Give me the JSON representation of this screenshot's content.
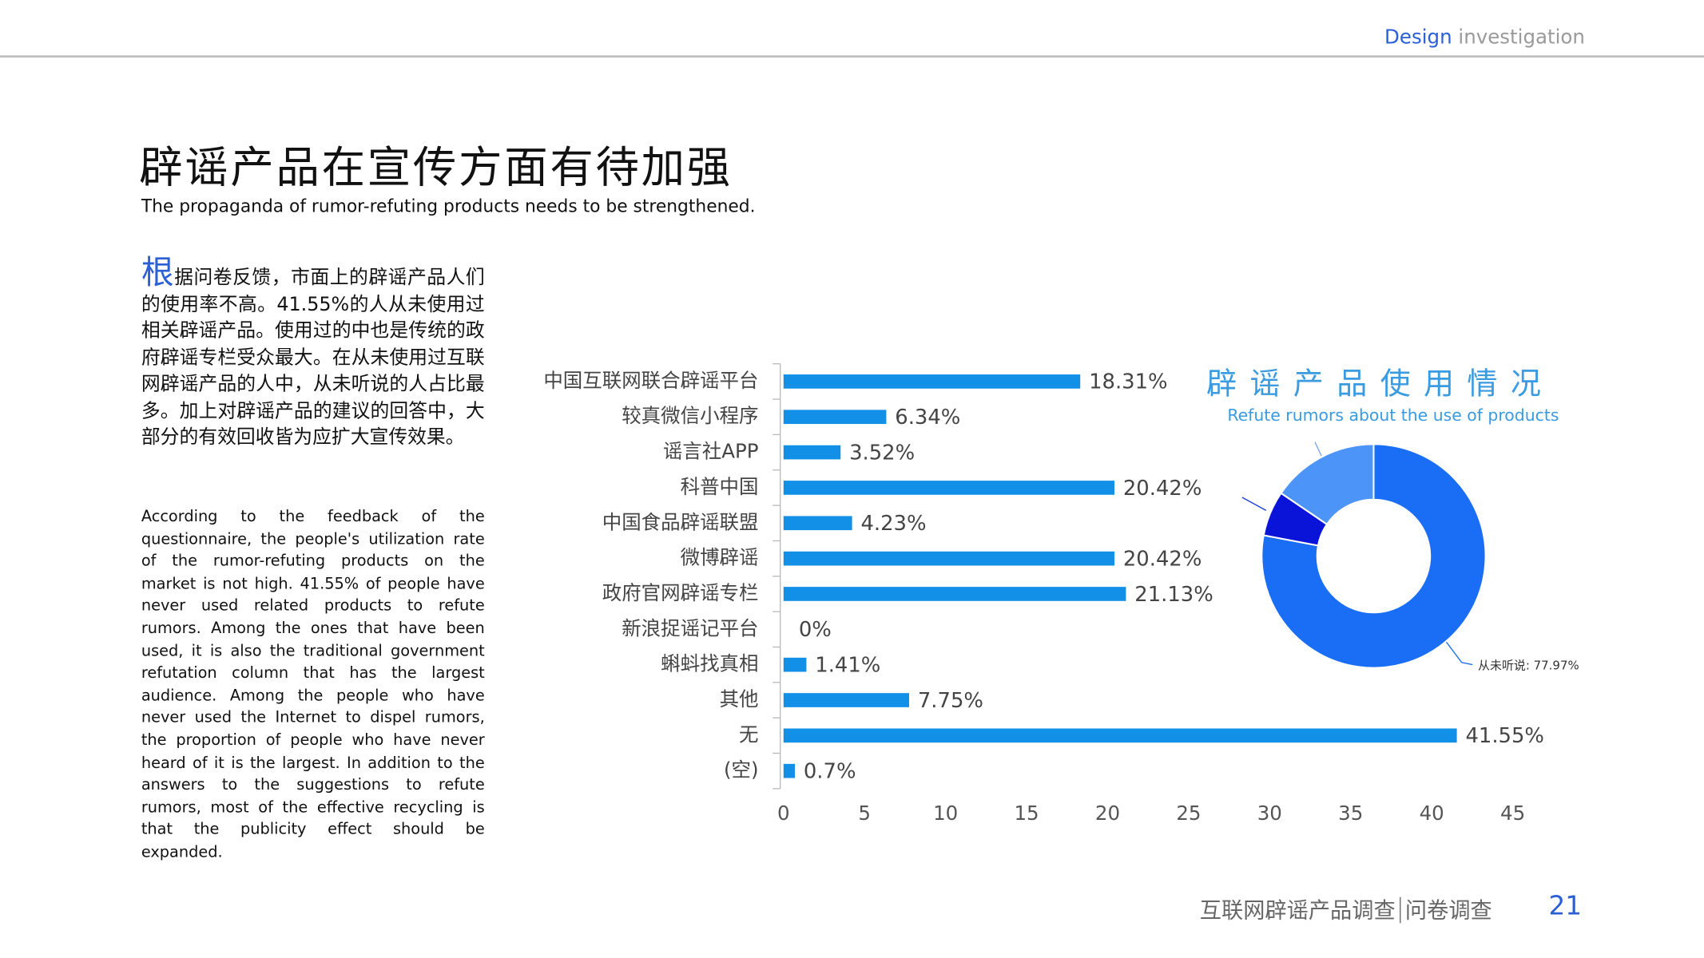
{
  "header": {
    "word1": "Design",
    "word2": "investigation"
  },
  "title": "辟谣产品在宣传方面有待加强",
  "subtitle": "The propaganda of rumor-refuting products needs to be strengthened.",
  "body": {
    "cn_initial": "根",
    "cn_rest": "据问卷反馈，市面上的辟谣产品人们的使用率不高。41.55%的人从未使用过相关辟谣产品。使用过的中也是传统的政府辟谣专栏受众最大。在从未使用过互联网辟谣产品的人中，从未听说的人占比最多。加上对辟谣产品的建议的回答中，大部分的有效回收皆为应扩大宣传效果。",
    "en": "According to the feedback of the questionnaire, the people's utilization rate of the rumor-refuting products on the market is not high. 41.55% of people have never used related products to refute rumors. Among the ones that have been used, it is also the traditional government refutation column that has the largest audience. Among the people who have never used the Internet to dispel rumors, the proportion of people who have never heard of it is the largest. In addition to the answers to the suggestions to refute rumors, most of the effective recycling is that the publicity effect should be expanded."
  },
  "chart_data": [
    {
      "type": "bar",
      "orientation": "horizontal",
      "color": "#1290e8",
      "categories": [
        "中国互联网联合辟谣平台",
        "较真微信小程序",
        "谣言社APP",
        "科普中国",
        "中国食品辟谣联盟",
        "微博辟谣",
        "政府官网辟谣专栏",
        "新浪捉谣记平台",
        "蝌蚪找真相",
        "其他",
        "无",
        "(空)"
      ],
      "values": [
        18.31,
        6.34,
        3.52,
        20.42,
        4.23,
        20.42,
        21.13,
        0,
        1.41,
        7.75,
        41.55,
        0.7
      ],
      "value_labels": [
        "18.31%",
        "6.34%",
        "3.52%",
        "20.42%",
        "4.23%",
        "20.42%",
        "21.13%",
        "0%",
        "1.41%",
        "7.75%",
        "41.55%",
        "0.7%"
      ],
      "xlim": [
        0,
        45
      ],
      "xticks": [
        0,
        5,
        10,
        15,
        20,
        25,
        30,
        35,
        40,
        45
      ]
    },
    {
      "type": "pie",
      "hole": true,
      "title": "辟谣产品使用情况",
      "subtitle": "Refute rumors about the use of products",
      "values": [
        77.97,
        6.53,
        15.5
      ],
      "value_labels": [
        "从未听说: 77.97%",
        null,
        null
      ],
      "colors": [
        "#1a6ef5",
        "#0a14d8",
        "#4d94f8"
      ]
    }
  ],
  "footer": {
    "left": "互联网辟谣产品调查",
    "right": "问卷调查",
    "page": "21"
  }
}
